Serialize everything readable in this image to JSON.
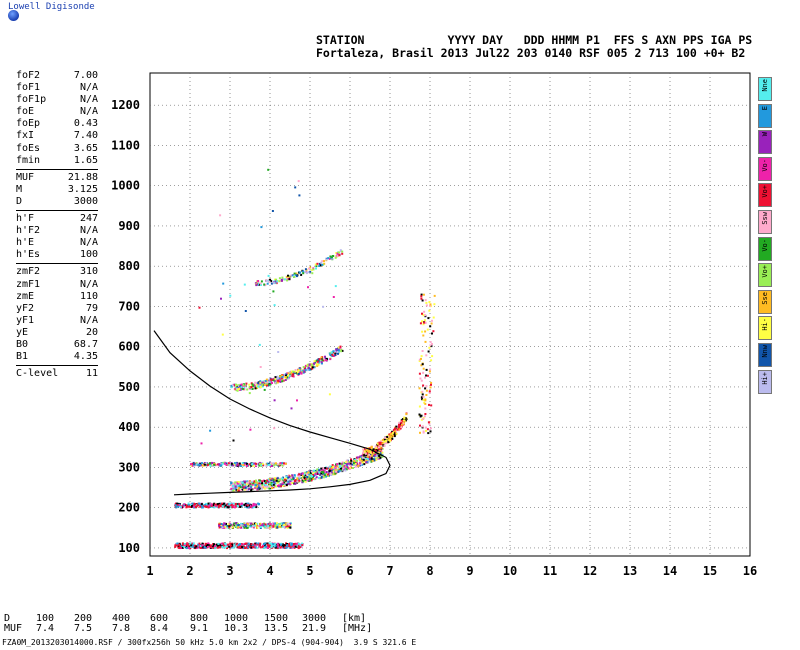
{
  "brand": "Lowell Digisonde",
  "header": {
    "line1": "STATION            YYYY DAY   DDD HHMM P1  FFS S AXN PPS IGA PS",
    "line2": "Fortaleza, Brasil 2013 Jul22 203 0140 RSF 005 2 713 100 +0+ B2"
  },
  "params": [
    {
      "k": "foF2",
      "v": "7.00"
    },
    {
      "k": "foF1",
      "v": "N/A"
    },
    {
      "k": "foF1p",
      "v": "N/A"
    },
    {
      "k": "foE",
      "v": "N/A"
    },
    {
      "k": "foEp",
      "v": "0.43"
    },
    {
      "k": "fxI",
      "v": "7.40"
    },
    {
      "k": "foEs",
      "v": "3.65"
    },
    {
      "k": "fmin",
      "v": "1.65"
    },
    {
      "sep": true
    },
    {
      "k": "MUF",
      "v": "21.88"
    },
    {
      "k": "M",
      "v": "3.125"
    },
    {
      "k": "D",
      "v": "3000"
    },
    {
      "sep": true
    },
    {
      "k": "h'F",
      "v": "247"
    },
    {
      "k": "h'F2",
      "v": "N/A"
    },
    {
      "k": "h'E",
      "v": "N/A"
    },
    {
      "k": "h'Es",
      "v": "100"
    },
    {
      "sep": true
    },
    {
      "k": "zmF2",
      "v": "310"
    },
    {
      "k": "zmF1",
      "v": "N/A"
    },
    {
      "k": "zmE",
      "v": "110"
    },
    {
      "k": "yF2",
      "v": "79"
    },
    {
      "k": "yF1",
      "v": "N/A"
    },
    {
      "k": "yE",
      "v": "20"
    },
    {
      "k": "B0",
      "v": "68.7"
    },
    {
      "k": "B1",
      "v": "4.35"
    },
    {
      "sep": true
    },
    {
      "k": "C-level",
      "v": "11"
    }
  ],
  "legend": [
    {
      "label": "Nne",
      "color": "#55eeee"
    },
    {
      "label": "E",
      "color": "#2299dd"
    },
    {
      "label": "W",
      "color": "#9922bb"
    },
    {
      "label": "Vo-",
      "color": "#ee22aa"
    },
    {
      "label": "Vo+",
      "color": "#ee1133"
    },
    {
      "label": "Ssw",
      "color": "#ffaacc"
    },
    {
      "label": "Vo-",
      "color": "#22aa22"
    },
    {
      "label": "Vo+",
      "color": "#99ee55"
    },
    {
      "label": "Sse",
      "color": "#ffbb22"
    },
    {
      "label": "Hi-",
      "color": "#ffff44"
    },
    {
      "label": "Nnw",
      "color": "#1155aa"
    },
    {
      "label": "Hi+",
      "color": "#bbbbee"
    }
  ],
  "muf_table": {
    "D_label": "D",
    "MUF_label": "MUF",
    "D": [
      "100",
      "200",
      "400",
      "600",
      "800",
      "1000",
      "1500",
      "3000"
    ],
    "MUF": [
      "7.4",
      "7.5",
      "7.8",
      "8.4",
      "9.1",
      "10.3",
      "13.5",
      "21.9"
    ],
    "D_unit": "[km]",
    "MUF_unit": "[MHz]"
  },
  "footer": "FZA0M_2013203014000.RSF / 300fx256h 50 kHz 5.0 km 2x2 / DPS-4 (904-904)  3.9 S 321.6 E",
  "chart_data": {
    "type": "scatter",
    "title": "",
    "xlabel": "",
    "ylabel": "",
    "xlim": [
      1,
      16
    ],
    "ylim": [
      80,
      1280
    ],
    "x_ticks": [
      1,
      2,
      3,
      4,
      5,
      6,
      7,
      8,
      9,
      10,
      11,
      12,
      13,
      14,
      15,
      16
    ],
    "y_ticks": [
      100,
      200,
      300,
      400,
      500,
      600,
      700,
      800,
      900,
      1000,
      1100,
      1200
    ],
    "grid": true,
    "traces": [
      {
        "name": "E-sporadic",
        "x_range": [
          1.6,
          4.8
        ],
        "h": 108,
        "spread": 6
      },
      {
        "name": "Es 2nd",
        "x_range": [
          2.7,
          4.5
        ],
        "h": 158,
        "spread": 6
      },
      {
        "name": "F low",
        "x_range": [
          1.6,
          3.7
        ],
        "h": 208,
        "spread": 5
      },
      {
        "name": "F main",
        "x_range": [
          3.0,
          6.8
        ],
        "h": [
          255,
          340
        ],
        "spread": 12
      },
      {
        "name": "F2 cusp",
        "x_range": [
          6.3,
          7.4
        ],
        "h": [
          340,
          430
        ],
        "spread": 10
      },
      {
        "name": "2F",
        "x_range": [
          3.0,
          5.8
        ],
        "h": [
          500,
          600
        ],
        "spread": 8
      },
      {
        "name": "3F",
        "x_range": [
          3.6,
          5.8
        ],
        "h": [
          760,
          840
        ],
        "spread": 6
      },
      {
        "name": "extra",
        "x_range": [
          2.0,
          4.4
        ],
        "h": 310,
        "spread": 4
      }
    ],
    "profile": {
      "x": [
        1.1,
        1.5,
        2.0,
        2.5,
        3.0,
        3.5,
        4.0,
        4.5,
        5.0,
        5.5,
        6.0,
        6.5,
        6.9,
        7.0,
        6.9,
        6.5,
        6.0,
        5.5,
        5.0,
        4.5,
        4.0,
        3.5,
        3.0,
        2.5,
        2.0,
        1.6
      ],
      "y": [
        640,
        585,
        540,
        502,
        470,
        445,
        423,
        404,
        388,
        374,
        360,
        345,
        325,
        305,
        285,
        268,
        258,
        252,
        247,
        244,
        242,
        240,
        238,
        236,
        234,
        232
      ]
    }
  }
}
